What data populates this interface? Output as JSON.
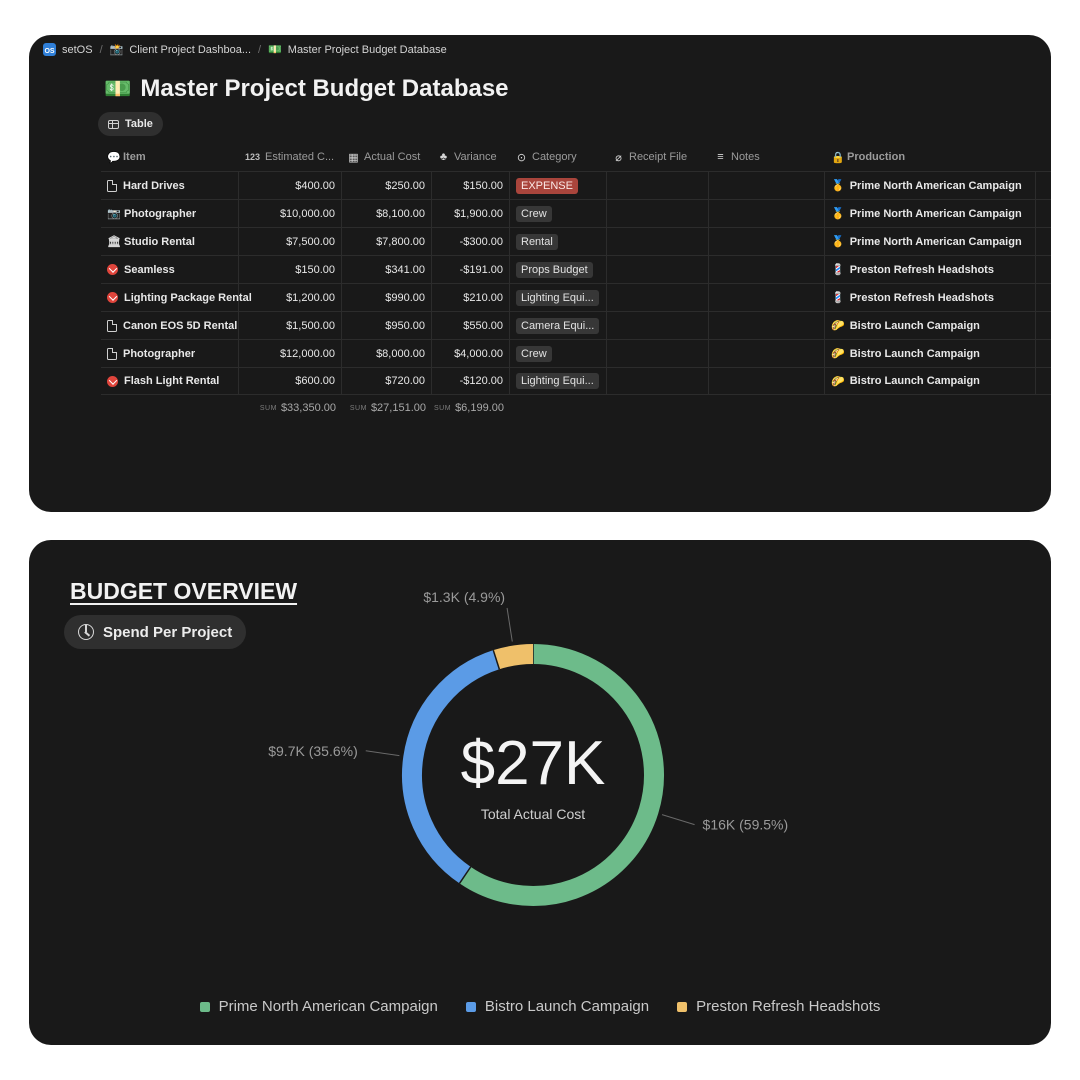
{
  "breadcrumb": {
    "workspace": "setOS",
    "workspace_badge": "OS",
    "parent_icon": "📸",
    "parent": "Client Project Dashboa...",
    "current_icon": "💵",
    "current": "Master Project Budget Database"
  },
  "page": {
    "title_icon": "💵",
    "title": "Master Project Budget Database",
    "view_tab": "Table"
  },
  "table": {
    "columns": [
      {
        "label": "Item",
        "icon": "speech-bubble-icon"
      },
      {
        "label": "Estimated C...",
        "icon": "number-icon",
        "prefix": "123"
      },
      {
        "label": "Actual Cost",
        "icon": "calculator-icon"
      },
      {
        "label": "Variance",
        "icon": "shapes-icon"
      },
      {
        "label": "Category",
        "icon": "chevron-circle-icon"
      },
      {
        "label": "Receipt File",
        "icon": "paperclip-icon"
      },
      {
        "label": "Notes",
        "icon": "text-lines-icon"
      },
      {
        "label": "Production",
        "icon": "lock-icon"
      }
    ],
    "rows": [
      {
        "icon": "doc",
        "item": "Hard Drives",
        "est": "$400.00",
        "act": "$250.00",
        "var": "$150.00",
        "cat": "EXPENSE",
        "cat_style": "expense",
        "prod_icon": "🥇",
        "prod": "Prime North American Campaign"
      },
      {
        "icon": "camera",
        "item": "Photographer",
        "est": "$10,000.00",
        "act": "$8,100.00",
        "var": "$1,900.00",
        "cat": "Crew",
        "cat_style": "default",
        "prod_icon": "🥇",
        "prod": "Prime North American Campaign"
      },
      {
        "icon": "building",
        "item": "Studio Rental",
        "est": "$7,500.00",
        "act": "$7,800.00",
        "var": "-$300.00",
        "cat": "Rental",
        "cat_style": "default",
        "prod_icon": "🥇",
        "prod": "Prime North American Campaign"
      },
      {
        "icon": "red",
        "item": "Seamless",
        "est": "$150.00",
        "act": "$341.00",
        "var": "-$191.00",
        "cat": "Props Budget",
        "cat_style": "default",
        "prod_icon": "💈",
        "prod": "Preston Refresh Headshots"
      },
      {
        "icon": "red",
        "item": "Lighting Package Rental",
        "est": "$1,200.00",
        "act": "$990.00",
        "var": "$210.00",
        "cat": "Lighting Equi...",
        "cat_style": "default",
        "prod_icon": "💈",
        "prod": "Preston Refresh Headshots"
      },
      {
        "icon": "doc",
        "item": "Canon EOS 5D Rental",
        "est": "$1,500.00",
        "act": "$950.00",
        "var": "$550.00",
        "cat": "Camera Equi...",
        "cat_style": "default",
        "prod_icon": "🌮",
        "prod": "Bistro Launch Campaign"
      },
      {
        "icon": "doc",
        "item": "Photographer",
        "est": "$12,000.00",
        "act": "$8,000.00",
        "var": "$4,000.00",
        "cat": "Crew",
        "cat_style": "default",
        "prod_icon": "🌮",
        "prod": "Bistro Launch Campaign"
      },
      {
        "icon": "red",
        "item": "Flash Light Rental",
        "est": "$600.00",
        "act": "$720.00",
        "var": "-$120.00",
        "cat": "Lighting Equi...",
        "cat_style": "default",
        "prod_icon": "🌮",
        "prod": "Bistro Launch Campaign"
      }
    ],
    "sums": {
      "label": "SUM",
      "est": "$33,350.00",
      "act": "$27,151.00",
      "var": "$6,199.00"
    }
  },
  "overview": {
    "title": "BUDGET OVERVIEW",
    "chip_label": "Spend Per Project",
    "chip_icon": "pie-chart-icon"
  },
  "chart_data": {
    "type": "pie",
    "variant": "donut",
    "center_value": "$27K",
    "center_label": "Total Actual Cost",
    "slices": [
      {
        "name": "Prime North American Campaign",
        "value": 16150,
        "label": "$16K (59.5%)",
        "percent": 59.5,
        "color": "#6dbb8a"
      },
      {
        "name": "Bistro Launch Campaign",
        "value": 9670,
        "label": "$9.7K (35.6%)",
        "percent": 35.6,
        "color": "#5b9be6"
      },
      {
        "name": "Preston Refresh Headshots",
        "value": 1331,
        "label": "$1.3K (4.9%)",
        "percent": 4.9,
        "color": "#efc06a"
      }
    ],
    "legend_position": "bottom"
  }
}
